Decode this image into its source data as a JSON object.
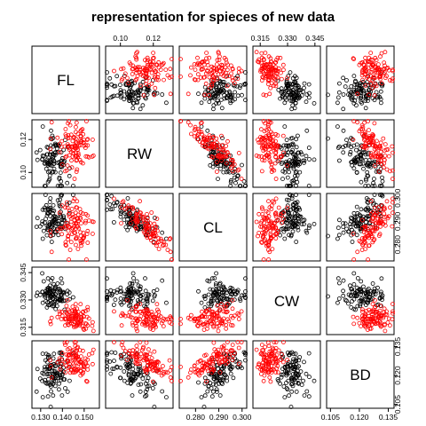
{
  "title": "representation for spieces of new data",
  "colors": {
    "group_a": "#000000",
    "group_b": "#ff0000",
    "frame": "#000000",
    "background": "#ffffff"
  },
  "chart_data": {
    "type": "scatter",
    "title": "representation for spieces of new data",
    "variables": [
      "FL",
      "RW",
      "CL",
      "CW",
      "BD"
    ],
    "ranges": {
      "FL": [
        0.126,
        0.157
      ],
      "RW": [
        0.091,
        0.132
      ],
      "CL": [
        0.273,
        0.302
      ],
      "CW": [
        0.311,
        0.348
      ],
      "BD": [
        0.103,
        0.138
      ]
    },
    "ticks": {
      "FL": [
        "0.130",
        "0.140",
        "0.150"
      ],
      "RW": [
        "0.10",
        "0.12"
      ],
      "CL": [
        "0.280",
        "0.290",
        "0.300"
      ],
      "CW": [
        "0.315",
        "0.330",
        "0.345"
      ],
      "BD": [
        "0.105",
        "0.120",
        "0.135"
      ]
    },
    "tick_placement": {
      "FL": "bottom",
      "RW": "top,left",
      "CL": "bottom,right",
      "CW": "top,left",
      "BD": "bottom,right"
    },
    "groups": [
      {
        "color": "#000000",
        "centers": {
          "FL": 0.136,
          "RW": 0.108,
          "CL": 0.291,
          "CW": 0.333,
          "BD": 0.121
        },
        "spread": {
          "FL": 0.0035,
          "RW": 0.008,
          "CL": 0.0045,
          "CW": 0.0045,
          "BD": 0.006
        }
      },
      {
        "color": "#ff0000",
        "centers": {
          "FL": 0.146,
          "RW": 0.117,
          "CL": 0.287,
          "CW": 0.32,
          "BD": 0.127
        },
        "spread": {
          "FL": 0.0045,
          "RW": 0.0075,
          "CL": 0.0055,
          "CW": 0.0035,
          "BD": 0.0045
        }
      }
    ],
    "points_per_group": 100,
    "grid": false,
    "legend": "none"
  }
}
